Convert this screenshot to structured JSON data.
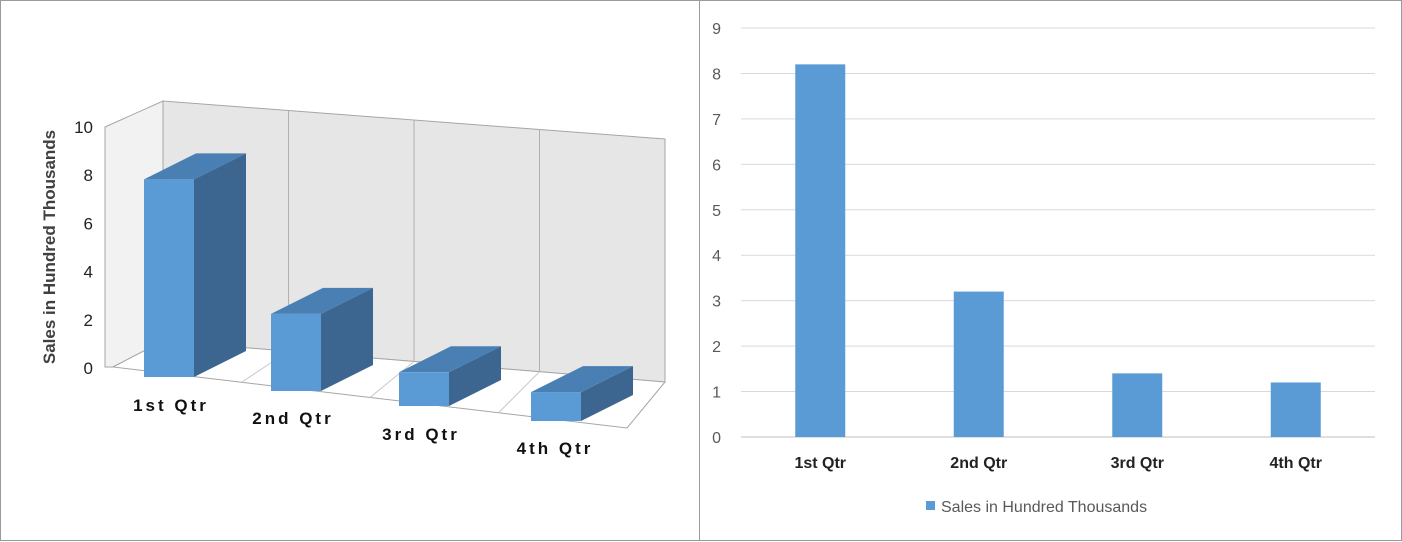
{
  "chart_data": [
    {
      "type": "bar",
      "style": "3d",
      "categories": [
        "1st Qtr",
        "2nd Qtr",
        "3rd Qtr",
        "4th Qtr"
      ],
      "values": [
        8.2,
        3.2,
        1.4,
        1.2
      ],
      "ylabel": "Sales in Hundred Thousands",
      "ylim": [
        0,
        10
      ],
      "yticks": [
        0,
        2,
        4,
        6,
        8,
        10
      ],
      "grid": true,
      "legend": "none",
      "colors": {
        "front": "#5b9bd5",
        "top": "#4a7fb3",
        "side": "#3c6690",
        "wall": "#e6e6e6",
        "floor": "#ffffff",
        "line": "#a6a6a6"
      }
    },
    {
      "type": "bar",
      "categories": [
        "1st Qtr",
        "2nd Qtr",
        "3rd Qtr",
        "4th Qtr"
      ],
      "series": [
        {
          "name": "Sales in Hundred Thousands",
          "values": [
            8.2,
            3.2,
            1.4,
            1.2
          ]
        }
      ],
      "ylim": [
        0,
        9
      ],
      "yticks": [
        0,
        1,
        2,
        3,
        4,
        5,
        6,
        7,
        8,
        9
      ],
      "grid": true,
      "legend": "bottom",
      "colors": {
        "bar": "#5b9bd5",
        "grid": "#d9d9d9",
        "axis": "#bfbfbf"
      }
    }
  ]
}
